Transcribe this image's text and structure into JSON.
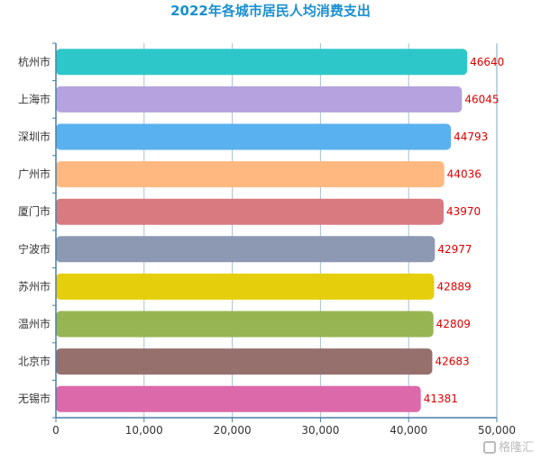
{
  "chart_data": {
    "type": "bar",
    "orientation": "horizontal",
    "title": "2022年各城市居民人均消费支出",
    "categories": [
      "杭州市",
      "上海市",
      "深圳市",
      "广州市",
      "厦门市",
      "宁波市",
      "苏州市",
      "温州市",
      "北京市",
      "无锡市"
    ],
    "values": [
      46640,
      46045,
      44793,
      44036,
      43970,
      42977,
      42889,
      42809,
      42683,
      41381
    ],
    "colors": [
      "#2ec7c9",
      "#b6a2de",
      "#5ab1ef",
      "#ffb980",
      "#d87a80",
      "#8d98b3",
      "#e5cf0d",
      "#97b552",
      "#95706d",
      "#dc69aa"
    ],
    "xlim": [
      0,
      50000
    ],
    "x_ticks": [
      "0",
      "10,000",
      "20,000",
      "30,000",
      "40,000",
      "50,000"
    ],
    "grid": true,
    "data_label_color": "#e00000"
  },
  "watermark": "格隆汇"
}
